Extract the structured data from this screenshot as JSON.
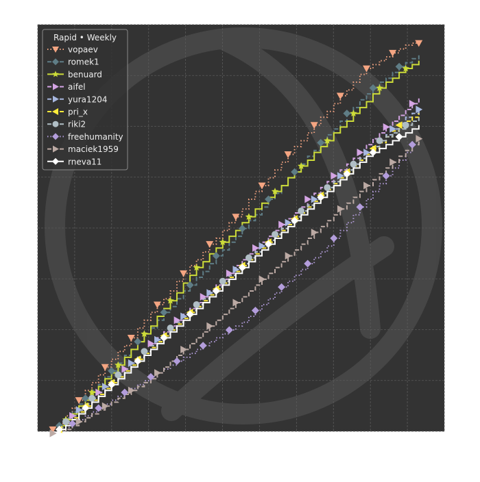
{
  "chart_data": {
    "type": "line",
    "title": "",
    "xlabel": "",
    "ylabel": "",
    "legend_title": "Rapid • Weekly",
    "legend_position": "top-left",
    "grid": true,
    "tick_labels_visible": false,
    "background": "#333333",
    "xlim": [
      0,
      1
    ],
    "ylim": [
      0,
      1
    ],
    "steps": 57,
    "x": [
      0.03,
      0.0469,
      0.0637,
      0.0806,
      0.0975,
      0.1143,
      0.1312,
      0.1481,
      0.165,
      0.1818,
      0.1987,
      0.2156,
      0.2324,
      0.2493,
      0.2662,
      0.2831,
      0.2999,
      0.3168,
      0.3337,
      0.3505,
      0.3674,
      0.3843,
      0.4011,
      0.418,
      0.4349,
      0.4518,
      0.4686,
      0.4855,
      0.5024,
      0.5192,
      0.5361,
      0.553,
      0.5699,
      0.5867,
      0.6036,
      0.6205,
      0.6373,
      0.6542,
      0.6711,
      0.688,
      0.7048,
      0.7217,
      0.7386,
      0.7554,
      0.7723,
      0.7892,
      0.8061,
      0.8229,
      0.8398,
      0.8567,
      0.8735,
      0.8904,
      0.9073,
      0.9241,
      0.941,
      0.9579,
      0.9748
    ],
    "series": [
      {
        "name": "vopaev",
        "color": "#f4a582",
        "linestyle": "dotted",
        "marker": "triangle-down",
        "values": [
          0.01,
          0.025,
          0.045,
          0.065,
          0.085,
          0.11,
          0.13,
          0.15,
          0.17,
          0.19,
          0.21,
          0.225,
          0.245,
          0.27,
          0.29,
          0.31,
          0.33,
          0.345,
          0.365,
          0.39,
          0.41,
          0.43,
          0.445,
          0.465,
          0.485,
          0.5,
          0.52,
          0.54,
          0.555,
          0.575,
          0.6,
          0.62,
          0.635,
          0.655,
          0.675,
          0.695,
          0.715,
          0.735,
          0.75,
          0.77,
          0.79,
          0.81,
          0.825,
          0.845,
          0.865,
          0.88,
          0.9,
          0.92,
          0.935,
          0.945,
          0.955,
          0.965,
          0.975,
          0.985,
          0.995,
          1.0,
          1.0
        ]
      },
      {
        "name": "romek1",
        "color": "#5f7d86",
        "linestyle": "dashed",
        "marker": "diamond",
        "values": [
          0.0,
          0.02,
          0.04,
          0.055,
          0.075,
          0.09,
          0.11,
          0.125,
          0.145,
          0.16,
          0.18,
          0.2,
          0.215,
          0.235,
          0.255,
          0.27,
          0.29,
          0.31,
          0.325,
          0.345,
          0.365,
          0.38,
          0.4,
          0.415,
          0.435,
          0.455,
          0.47,
          0.49,
          0.505,
          0.525,
          0.545,
          0.56,
          0.58,
          0.6,
          0.615,
          0.635,
          0.655,
          0.67,
          0.69,
          0.71,
          0.725,
          0.745,
          0.765,
          0.78,
          0.8,
          0.82,
          0.835,
          0.855,
          0.87,
          0.885,
          0.9,
          0.91,
          0.925,
          0.94,
          0.95,
          0.96,
          0.97
        ]
      },
      {
        "name": "benuard",
        "color": "#cddc39",
        "linestyle": "solid",
        "marker": "star",
        "values": [
          0.0,
          0.02,
          0.035,
          0.05,
          0.07,
          0.085,
          0.105,
          0.12,
          0.14,
          0.155,
          0.175,
          0.195,
          0.215,
          0.235,
          0.255,
          0.275,
          0.3,
          0.32,
          0.34,
          0.36,
          0.385,
          0.405,
          0.425,
          0.44,
          0.46,
          0.475,
          0.49,
          0.505,
          0.52,
          0.54,
          0.555,
          0.575,
          0.59,
          0.605,
          0.62,
          0.635,
          0.655,
          0.67,
          0.685,
          0.7,
          0.72,
          0.735,
          0.75,
          0.77,
          0.785,
          0.8,
          0.82,
          0.835,
          0.85,
          0.87,
          0.885,
          0.9,
          0.91,
          0.925,
          0.935,
          0.945,
          0.955
        ]
      },
      {
        "name": "aifel",
        "color": "#d4a4e4",
        "linestyle": "dashed",
        "marker": "triangle-right",
        "values": [
          0.0,
          0.015,
          0.03,
          0.045,
          0.06,
          0.075,
          0.09,
          0.105,
          0.12,
          0.135,
          0.15,
          0.165,
          0.18,
          0.195,
          0.21,
          0.23,
          0.245,
          0.26,
          0.275,
          0.29,
          0.305,
          0.32,
          0.335,
          0.35,
          0.365,
          0.38,
          0.395,
          0.41,
          0.43,
          0.445,
          0.46,
          0.475,
          0.49,
          0.505,
          0.52,
          0.535,
          0.55,
          0.565,
          0.58,
          0.6,
          0.615,
          0.63,
          0.645,
          0.66,
          0.675,
          0.69,
          0.705,
          0.72,
          0.74,
          0.755,
          0.77,
          0.785,
          0.8,
          0.815,
          0.83,
          0.845,
          0.86
        ]
      },
      {
        "name": "yura1204",
        "color": "#a7b7e0",
        "linestyle": "dashed",
        "marker": "triangle-right",
        "values": [
          0.0,
          0.015,
          0.03,
          0.045,
          0.06,
          0.075,
          0.09,
          0.105,
          0.12,
          0.135,
          0.15,
          0.165,
          0.18,
          0.195,
          0.21,
          0.225,
          0.24,
          0.255,
          0.27,
          0.285,
          0.3,
          0.315,
          0.33,
          0.345,
          0.36,
          0.375,
          0.39,
          0.405,
          0.42,
          0.435,
          0.45,
          0.465,
          0.48,
          0.495,
          0.51,
          0.525,
          0.54,
          0.555,
          0.57,
          0.585,
          0.6,
          0.615,
          0.63,
          0.645,
          0.66,
          0.675,
          0.69,
          0.705,
          0.72,
          0.735,
          0.75,
          0.765,
          0.78,
          0.795,
          0.81,
          0.82,
          0.83
        ]
      },
      {
        "name": "pri_x",
        "color": "#ffeb3b",
        "linestyle": "dashed",
        "marker": "triangle-left",
        "values": [
          0.0,
          0.01,
          0.025,
          0.04,
          0.055,
          0.07,
          0.085,
          0.1,
          0.115,
          0.13,
          0.145,
          0.16,
          0.175,
          0.19,
          0.205,
          0.22,
          0.235,
          0.25,
          0.265,
          0.28,
          0.295,
          0.31,
          0.325,
          0.34,
          0.355,
          0.37,
          0.385,
          0.4,
          0.415,
          0.43,
          0.445,
          0.46,
          0.475,
          0.49,
          0.505,
          0.52,
          0.535,
          0.55,
          0.565,
          0.58,
          0.595,
          0.61,
          0.625,
          0.64,
          0.655,
          0.67,
          0.685,
          0.7,
          0.715,
          0.73,
          0.745,
          0.76,
          0.775,
          0.79,
          0.8,
          0.81,
          0.82
        ]
      },
      {
        "name": "riki2",
        "color": "#b0bec5",
        "linestyle": "dashed",
        "marker": "circle",
        "values": [
          0.0,
          0.015,
          0.03,
          0.045,
          0.06,
          0.075,
          0.09,
          0.105,
          0.12,
          0.135,
          0.15,
          0.165,
          0.18,
          0.195,
          0.21,
          0.225,
          0.24,
          0.255,
          0.27,
          0.285,
          0.3,
          0.315,
          0.33,
          0.345,
          0.36,
          0.375,
          0.39,
          0.405,
          0.42,
          0.435,
          0.45,
          0.465,
          0.48,
          0.495,
          0.51,
          0.525,
          0.54,
          0.555,
          0.57,
          0.585,
          0.6,
          0.615,
          0.63,
          0.645,
          0.66,
          0.675,
          0.69,
          0.705,
          0.72,
          0.735,
          0.75,
          0.76,
          0.77,
          0.78,
          0.79,
          0.8,
          0.81
        ]
      },
      {
        "name": "freehumanity",
        "color": "#b39ddb",
        "linestyle": "dotted",
        "marker": "diamond",
        "values": [
          0.0,
          0.005,
          0.015,
          0.025,
          0.035,
          0.045,
          0.055,
          0.065,
          0.075,
          0.085,
          0.095,
          0.105,
          0.115,
          0.125,
          0.135,
          0.145,
          0.155,
          0.165,
          0.175,
          0.185,
          0.195,
          0.205,
          0.215,
          0.225,
          0.235,
          0.245,
          0.255,
          0.265,
          0.275,
          0.285,
          0.3,
          0.315,
          0.33,
          0.345,
          0.36,
          0.375,
          0.39,
          0.405,
          0.42,
          0.435,
          0.45,
          0.465,
          0.48,
          0.5,
          0.52,
          0.54,
          0.56,
          0.58,
          0.6,
          0.62,
          0.64,
          0.66,
          0.68,
          0.7,
          0.72,
          0.74,
          0.76
        ]
      },
      {
        "name": "maciek1959",
        "color": "#bcaaa4",
        "linestyle": "dashed",
        "marker": "triangle-right",
        "values": [
          0.0,
          0.0,
          0.01,
          0.02,
          0.03,
          0.04,
          0.05,
          0.06,
          0.07,
          0.08,
          0.09,
          0.1,
          0.11,
          0.12,
          0.13,
          0.14,
          0.155,
          0.17,
          0.185,
          0.2,
          0.215,
          0.23,
          0.245,
          0.26,
          0.275,
          0.29,
          0.305,
          0.32,
          0.335,
          0.35,
          0.365,
          0.38,
          0.395,
          0.41,
          0.425,
          0.44,
          0.455,
          0.47,
          0.485,
          0.5,
          0.515,
          0.53,
          0.545,
          0.56,
          0.575,
          0.59,
          0.605,
          0.62,
          0.635,
          0.65,
          0.665,
          0.68,
          0.695,
          0.71,
          0.725,
          0.74,
          0.755
        ]
      },
      {
        "name": "rneva11",
        "color": "#ffffff",
        "linestyle": "solid",
        "marker": "diamond",
        "values": [
          0.0,
          0.01,
          0.02,
          0.035,
          0.05,
          0.065,
          0.08,
          0.095,
          0.11,
          0.125,
          0.14,
          0.155,
          0.17,
          0.185,
          0.2,
          0.215,
          0.23,
          0.245,
          0.26,
          0.275,
          0.29,
          0.305,
          0.32,
          0.335,
          0.35,
          0.365,
          0.38,
          0.395,
          0.41,
          0.425,
          0.44,
          0.455,
          0.47,
          0.485,
          0.5,
          0.515,
          0.53,
          0.545,
          0.56,
          0.575,
          0.59,
          0.605,
          0.62,
          0.635,
          0.65,
          0.665,
          0.68,
          0.695,
          0.71,
          0.72,
          0.73,
          0.74,
          0.75,
          0.76,
          0.77,
          0.78,
          0.79
        ]
      }
    ]
  }
}
